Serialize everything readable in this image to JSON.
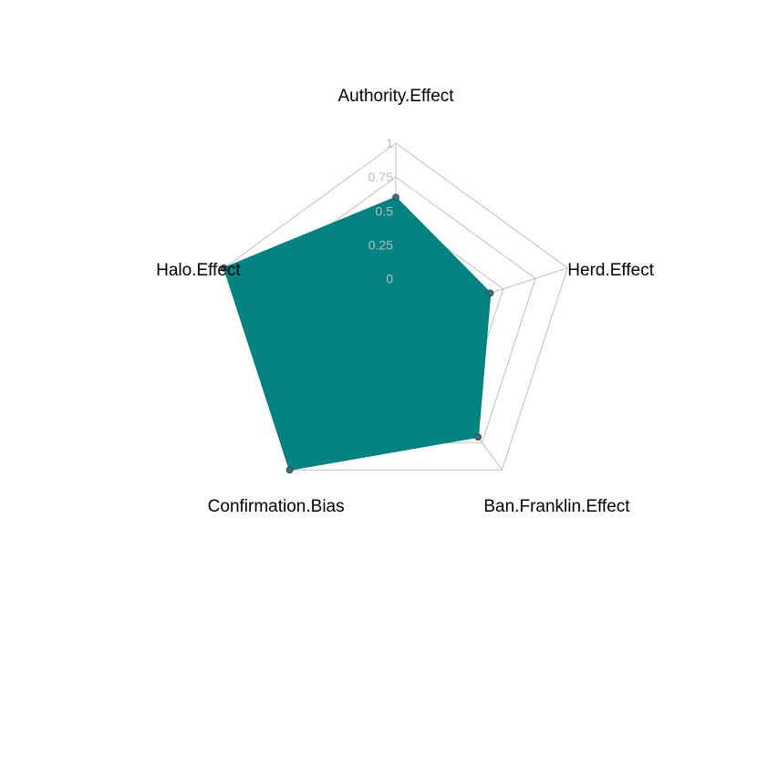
{
  "colors": {
    "fill": "#008080",
    "grid": "#c0c0c0",
    "tick_text": "#bdbdbd",
    "point": "#3a6f77"
  },
  "chart_data": {
    "type": "radar",
    "title": "",
    "axes": [
      "Authority.Effect",
      "Herd.Effect",
      "Ban.Franklin.Effect",
      "Confirmation.Bias",
      "Halo.Effect"
    ],
    "ticks": [
      "0",
      "0.25",
      "0.5",
      "0.75",
      "1"
    ],
    "range": [
      0,
      1
    ],
    "grid": true,
    "series": [
      {
        "values": [
          0.6,
          0.4,
          0.7,
          1.0,
          1.0
        ]
      }
    ]
  }
}
